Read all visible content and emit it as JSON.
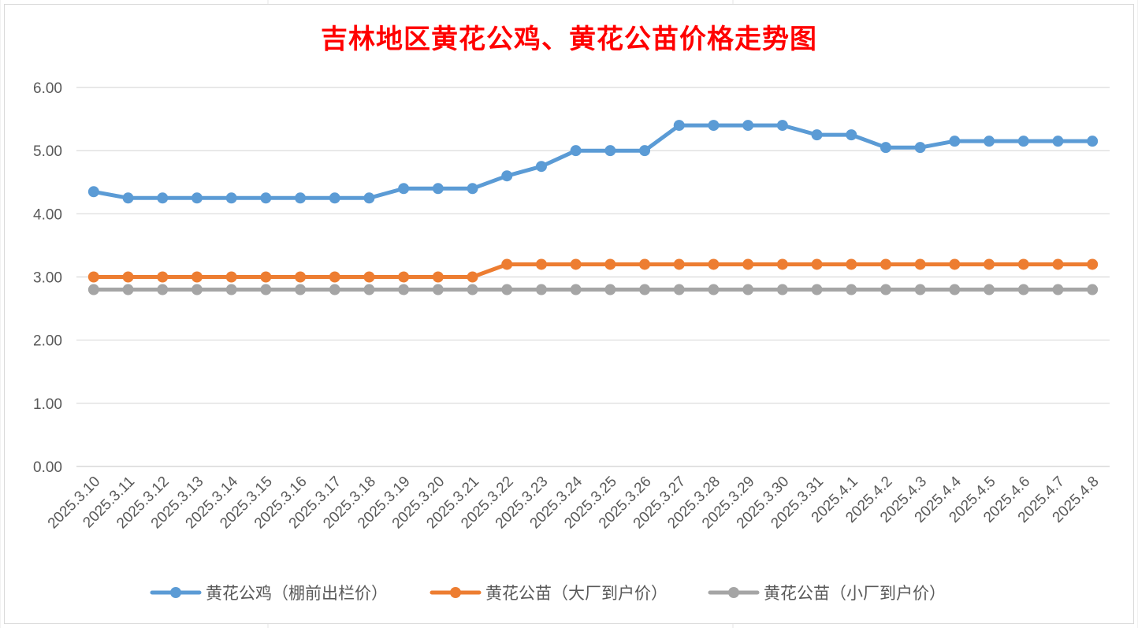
{
  "chart_data": {
    "type": "line",
    "title": "吉林地区黄花公鸡、黄花公苗价格走势图",
    "title_color": "#ff0000",
    "xlabel": "",
    "ylabel": "",
    "categories": [
      "2025.3.10",
      "2025.3.11",
      "2025.3.12",
      "2025.3.13",
      "2025.3.14",
      "2025.3.15",
      "2025.3.16",
      "2025.3.17",
      "2025.3.18",
      "2025.3.19",
      "2025.3.20",
      "2025.3.21",
      "2025.3.22",
      "2025.3.23",
      "2025.3.24",
      "2025.3.25",
      "2025.3.26",
      "2025.3.27",
      "2025.3.28",
      "2025.3.29",
      "2025.3.30",
      "2025.3.31",
      "2025.4.1",
      "2025.4.2",
      "2025.4.3",
      "2025.4.4",
      "2025.4.5",
      "2025.4.6",
      "2025.4.7",
      "2025.4.8"
    ],
    "ylim": [
      0,
      6
    ],
    "y_ticks": [
      "0.00",
      "1.00",
      "2.00",
      "3.00",
      "4.00",
      "5.00",
      "6.00"
    ],
    "grid": true,
    "legend_position": "bottom",
    "series": [
      {
        "name": "黄花公鸡（棚前出栏价）",
        "color": "#5b9bd5",
        "values": [
          4.35,
          4.25,
          4.25,
          4.25,
          4.25,
          4.25,
          4.25,
          4.25,
          4.25,
          4.4,
          4.4,
          4.4,
          4.6,
          4.75,
          5.0,
          5.0,
          5.0,
          5.4,
          5.4,
          5.4,
          5.4,
          5.25,
          5.25,
          5.05,
          5.05,
          5.15,
          5.15,
          5.15,
          5.15,
          5.15
        ]
      },
      {
        "name": "黄花公苗（大厂到户价）",
        "color": "#ed7d31",
        "values": [
          3.0,
          3.0,
          3.0,
          3.0,
          3.0,
          3.0,
          3.0,
          3.0,
          3.0,
          3.0,
          3.0,
          3.0,
          3.2,
          3.2,
          3.2,
          3.2,
          3.2,
          3.2,
          3.2,
          3.2,
          3.2,
          3.2,
          3.2,
          3.2,
          3.2,
          3.2,
          3.2,
          3.2,
          3.2,
          3.2
        ]
      },
      {
        "name": "黄花公苗（小厂到户价）",
        "color": "#a5a5a5",
        "values": [
          2.8,
          2.8,
          2.8,
          2.8,
          2.8,
          2.8,
          2.8,
          2.8,
          2.8,
          2.8,
          2.8,
          2.8,
          2.8,
          2.8,
          2.8,
          2.8,
          2.8,
          2.8,
          2.8,
          2.8,
          2.8,
          2.8,
          2.8,
          2.8,
          2.8,
          2.8,
          2.8,
          2.8,
          2.8,
          2.8
        ]
      }
    ]
  }
}
